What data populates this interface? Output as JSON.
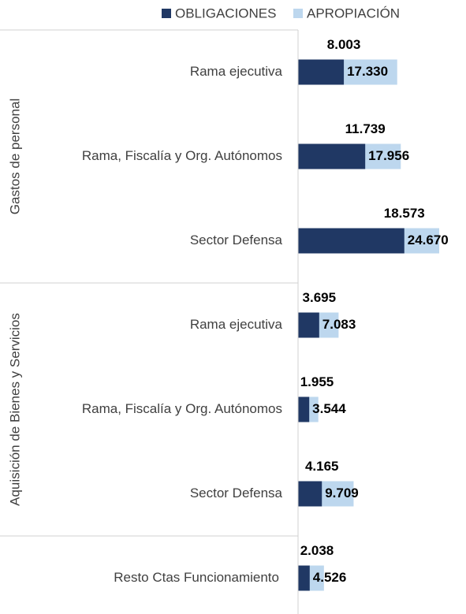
{
  "chart_data": {
    "type": "bar",
    "groups": [
      {
        "name": "Gastos de personal",
        "categories": [
          "Rama ejecutiva",
          "Rama, Fiscalía y Org. Autónomos",
          "Sector Defensa"
        ]
      },
      {
        "name": "Aquisición de Bienes y Servicios",
        "categories": [
          "Rama ejecutiva",
          "Rama, Fiscalía y Org. Autónomos",
          "Sector Defensa"
        ]
      },
      {
        "name": null,
        "categories": [
          "Resto Ctas Funcionamiento"
        ]
      }
    ],
    "series": [
      {
        "name": "APROPIACIÓN",
        "color": "#bdd7ee",
        "values": [
          17330,
          17956,
          24670,
          7083,
          3544,
          9709,
          4526
        ],
        "value_labels": [
          "17.330",
          "17.956",
          "24.670",
          "7.083",
          "3.544",
          "9.709",
          "4.526"
        ]
      },
      {
        "name": "OBLIGACIONES",
        "color": "#203864",
        "values": [
          8003,
          11739,
          18573,
          3695,
          1955,
          4165,
          2038
        ],
        "value_labels": [
          "8.003",
          "11.739",
          "18.573",
          "3.695",
          "1.955",
          "4.165",
          "2.038"
        ]
      }
    ],
    "legend": "top"
  }
}
